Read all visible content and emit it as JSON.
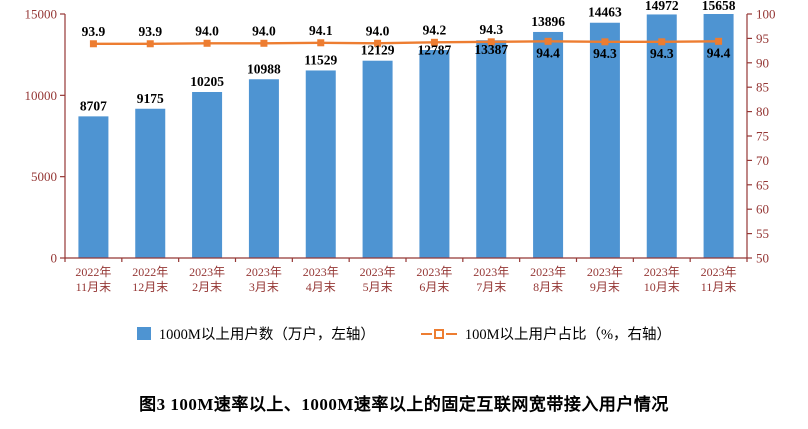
{
  "chart_data": {
    "type": "bar+line",
    "categories": [
      [
        "2022年",
        "11月末"
      ],
      [
        "2022年",
        "12月末"
      ],
      [
        "2023年",
        "2月末"
      ],
      [
        "2023年",
        "3月末"
      ],
      [
        "2023年",
        "4月末"
      ],
      [
        "2023年",
        "5月末"
      ],
      [
        "2023年",
        "6月末"
      ],
      [
        "2023年",
        "7月末"
      ],
      [
        "2023年",
        "8月末"
      ],
      [
        "2023年",
        "9月末"
      ],
      [
        "2023年",
        "10月末"
      ],
      [
        "2023年",
        "11月末"
      ]
    ],
    "series": [
      {
        "name": "1000M以上用户数（万户，左轴）",
        "type": "bar",
        "axis": "left",
        "values": [
          8707,
          9175,
          10205,
          10988,
          11529,
          12129,
          12787,
          13387,
          13896,
          14463,
          14972,
          15658
        ],
        "color": "#4E94D2"
      },
      {
        "name": "100M以上用户占比（%，右轴）",
        "type": "line",
        "axis": "right",
        "values": [
          93.9,
          93.9,
          94.0,
          94.0,
          94.1,
          94.0,
          94.2,
          94.3,
          94.4,
          94.3,
          94.3,
          94.4
        ],
        "color": "#ED7D31"
      }
    ],
    "left_axis": {
      "min": 0,
      "max": 15000,
      "ticks": [
        0,
        5000,
        10000,
        15000
      ]
    },
    "right_axis": {
      "min": 50,
      "max": 100,
      "ticks": [
        50,
        55,
        60,
        65,
        70,
        75,
        80,
        85,
        90,
        95,
        100
      ]
    },
    "grid": false,
    "legend_position": "bottom",
    "axis_color": "#953735",
    "xlabel": "",
    "ylabel": ""
  },
  "caption": "图3 100M速率以上、1000M速率以上的固定互联网宽带接入用户情况"
}
